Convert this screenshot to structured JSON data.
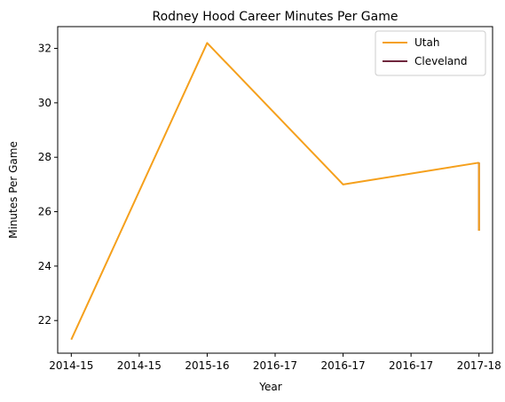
{
  "chart_data": {
    "type": "line",
    "title": "Rodney Hood Career Minutes Per Game",
    "xlabel": "Year",
    "ylabel": "Minutes Per Game",
    "x_tick_labels": [
      "2014-15",
      "2014-15",
      "2015-16",
      "2016-17",
      "2016-17",
      "2016-17",
      "2017-18"
    ],
    "x_range": [
      -0.1,
      3.1
    ],
    "ylim": [
      20.8,
      32.8
    ],
    "y_ticks": [
      22,
      24,
      26,
      28,
      30,
      32
    ],
    "grid": false,
    "legend_position": "top-right",
    "series": [
      {
        "name": "Utah",
        "color": "#f5a01c",
        "x": [
          0,
          1,
          2,
          3
        ],
        "values": [
          21.3,
          32.2,
          27.0,
          27.8
        ]
      },
      {
        "name": "Cleveland",
        "color": "#6f263d",
        "x": [
          3,
          3
        ],
        "values": [
          27.8,
          25.3
        ]
      }
    ],
    "connector": {
      "color": "#f5a01c",
      "x": [
        3,
        3
      ],
      "values": [
        27.8,
        25.3
      ]
    }
  }
}
